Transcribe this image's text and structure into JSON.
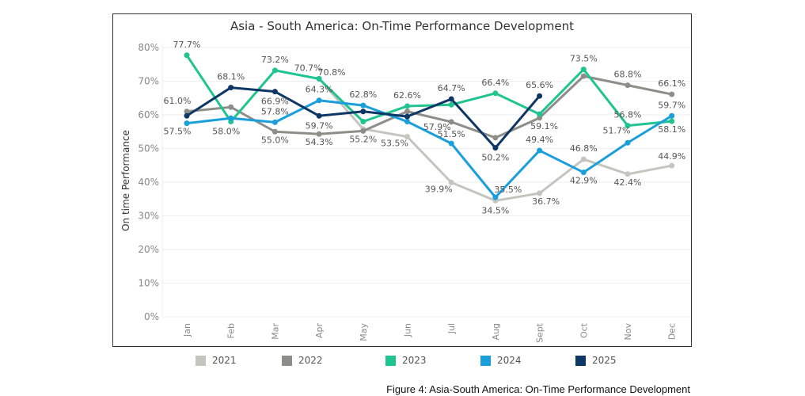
{
  "figure_caption": "Figure 4: Asia-South America: On-Time Performance Development",
  "chart_data": {
    "type": "line",
    "title": "Asia - South America: On-Time Performance Development",
    "xlabel": "",
    "ylabel": "On time Performance",
    "ylim": [
      0,
      80
    ],
    "yticks": [
      "0%",
      "10%",
      "20%",
      "30%",
      "40%",
      "50%",
      "60%",
      "70%",
      "80%"
    ],
    "ytick_values": [
      0,
      10,
      20,
      30,
      40,
      50,
      60,
      70,
      80
    ],
    "grid": true,
    "legend_position": "bottom",
    "categories": [
      "Jan",
      "Feb",
      "Mar",
      "Apr",
      "May",
      "Jun",
      "Jul",
      "Aug",
      "Sept",
      "Oct",
      "Nov",
      "Dec"
    ],
    "series": [
      {
        "name": "2021",
        "color": "#c5c5c0",
        "values": [
          null,
          null,
          null,
          70.8,
          55.8,
          53.5,
          39.9,
          34.5,
          36.7,
          46.8,
          42.4,
          44.9
        ],
        "labels": [
          null,
          null,
          null,
          "70.8%",
          null,
          "53.5%",
          "39.9%",
          "34.5%",
          "36.7%",
          "46.8%",
          "42.4%",
          "44.9%"
        ]
      },
      {
        "name": "2022",
        "color": "#8e8e89",
        "values": [
          61.0,
          62.3,
          55.0,
          54.3,
          55.2,
          61.0,
          57.9,
          53.2,
          59.1,
          71.5,
          68.8,
          66.1
        ],
        "labels": [
          "61.0%",
          null,
          "55.0%",
          "54.3%",
          "55.2%",
          null,
          "57.9%",
          null,
          "59.1%",
          null,
          "68.8%",
          "66.1%"
        ]
      },
      {
        "name": "2023",
        "color": "#1fc48f",
        "values": [
          77.7,
          58.0,
          73.2,
          70.7,
          58.0,
          62.6,
          63.0,
          66.4,
          60.2,
          73.5,
          56.8,
          58.1
        ],
        "labels": [
          "77.7%",
          "58.0%",
          "73.2%",
          "70.7%",
          null,
          "62.6%",
          null,
          "66.4%",
          null,
          "73.5%",
          "56.8%",
          "58.1%"
        ]
      },
      {
        "name": "2024",
        "color": "#1a9fdb",
        "values": [
          57.5,
          59.0,
          57.8,
          64.3,
          62.8,
          58.0,
          51.5,
          35.5,
          49.4,
          42.9,
          51.7,
          59.7
        ],
        "labels": [
          "57.5%",
          null,
          "57.8%",
          "64.3%",
          "62.8%",
          null,
          "51.5%",
          "35.5%",
          "49.4%",
          "42.9%",
          "51.7%",
          "59.7%"
        ]
      },
      {
        "name": "2025",
        "color": "#0f3766",
        "values": [
          59.7,
          68.1,
          66.9,
          59.7,
          61.0,
          59.5,
          64.7,
          50.2,
          65.6,
          null,
          null,
          null
        ],
        "labels": [
          null,
          "68.1%",
          "66.9%",
          "59.7%",
          null,
          null,
          "64.7%",
          "50.2%",
          "65.6%",
          null,
          null,
          null
        ]
      }
    ]
  }
}
